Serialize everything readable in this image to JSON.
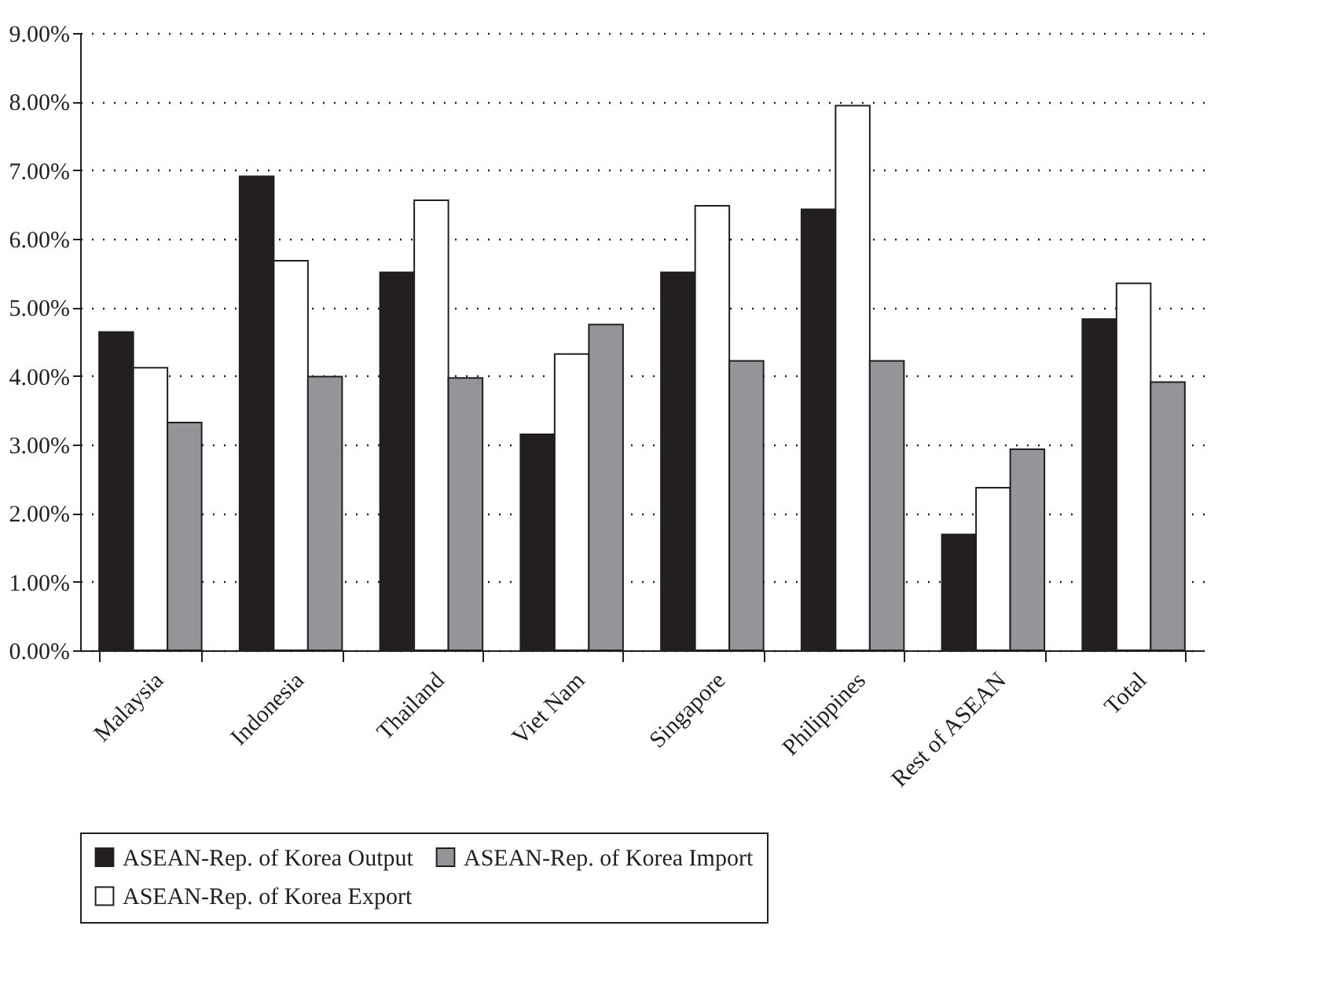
{
  "chart_data": {
    "type": "bar",
    "categories": [
      "Malaysia",
      "Indonesia",
      "Thailand",
      "Viet Nam",
      "Singapore",
      "Philippines",
      "Rest of ASEAN",
      "Total"
    ],
    "series": [
      {
        "name": "ASEAN-Rep. of Korea Output",
        "color": "#231f20",
        "values": [
          4.64,
          6.91,
          5.51,
          3.15,
          5.51,
          6.43,
          1.69,
          4.83
        ]
      },
      {
        "name": "ASEAN-Rep. of Korea Export",
        "color": "#ffffff",
        "values": [
          4.12,
          5.68,
          6.56,
          4.32,
          6.48,
          7.94,
          2.37,
          5.35
        ]
      },
      {
        "name": "ASEAN-Rep. of Korea Import",
        "color": "#939598",
        "values": [
          3.32,
          3.99,
          3.97,
          4.75,
          4.22,
          4.22,
          2.93,
          3.91
        ]
      }
    ],
    "ylim": [
      0,
      9
    ],
    "yticks": [
      {
        "value": 0,
        "label": "0.00%"
      },
      {
        "value": 1,
        "label": "1.00%"
      },
      {
        "value": 2,
        "label": "2.00%"
      },
      {
        "value": 3,
        "label": "3.00%"
      },
      {
        "value": 4,
        "label": "4.00%"
      },
      {
        "value": 5,
        "label": "5.00%"
      },
      {
        "value": 6,
        "label": "6.00%"
      },
      {
        "value": 7,
        "label": "7.00%"
      },
      {
        "value": 8,
        "label": "8.00%"
      },
      {
        "value": 9,
        "label": "9.00%"
      }
    ],
    "grid": "y",
    "legend": "bottom"
  }
}
